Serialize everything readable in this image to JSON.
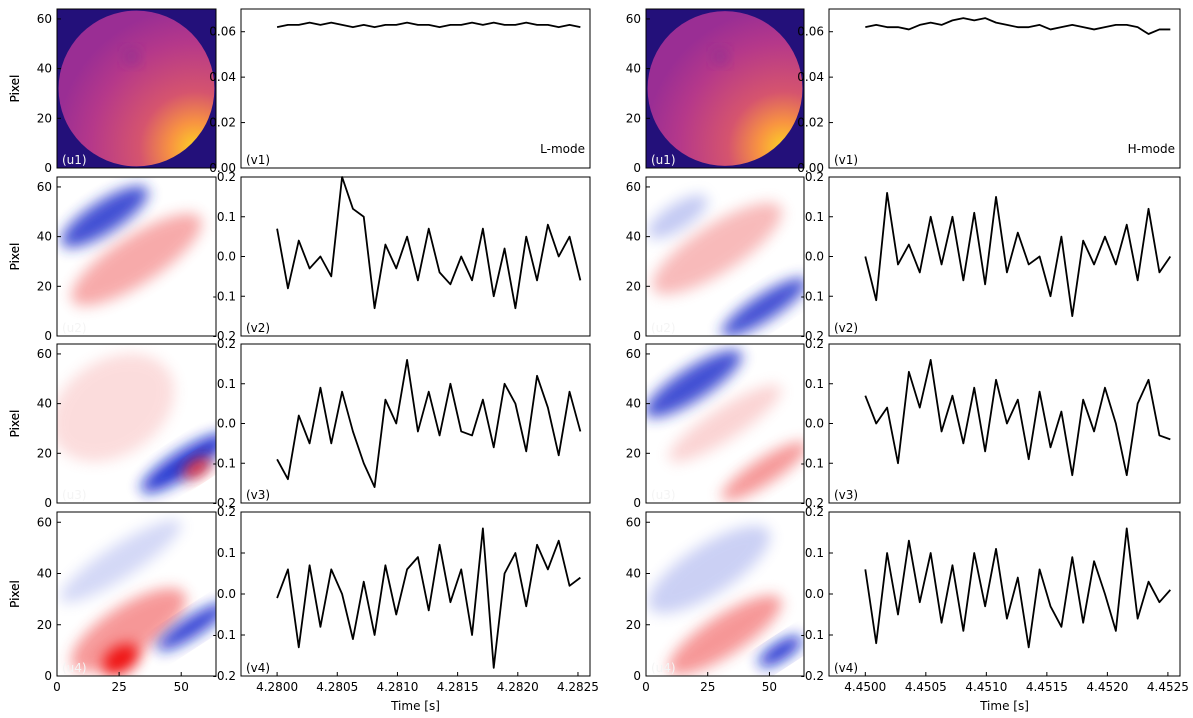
{
  "chart_data": [
    {
      "type": "heatmap",
      "label": "(u1)",
      "ylabel": "Pixel",
      "xlim": [
        0,
        64
      ],
      "ylim": [
        0,
        64
      ],
      "yticks": [
        0,
        20,
        40,
        60
      ]
    },
    {
      "type": "line",
      "label": "(v1)",
      "annotation": "L-mode",
      "color": "#000000",
      "xlim": [
        4.2797,
        4.2826
      ],
      "ylim": [
        0,
        0.07
      ],
      "yticks": [
        {
          "value": 0,
          "label": "0.00"
        },
        {
          "value": 0.02,
          "label": "0.02"
        },
        {
          "value": 0.04,
          "label": "0.04"
        },
        {
          "value": 0.06,
          "label": "0.06"
        }
      ],
      "x": [
        4.28,
        4.28009,
        4.28018,
        4.28027,
        4.28036,
        4.28045,
        4.28054,
        4.28063,
        4.28072,
        4.28081,
        4.2809,
        4.28099,
        4.28108,
        4.28117,
        4.28126,
        4.28135,
        4.28144,
        4.28153,
        4.28162,
        4.28171,
        4.2818,
        4.28189,
        4.28198,
        4.28207,
        4.28216,
        4.28225,
        4.28234,
        4.28243,
        4.28252
      ],
      "values": [
        0.062,
        0.063,
        0.063,
        0.064,
        0.063,
        0.064,
        0.063,
        0.062,
        0.063,
        0.062,
        0.063,
        0.063,
        0.064,
        0.063,
        0.063,
        0.062,
        0.063,
        0.063,
        0.064,
        0.063,
        0.064,
        0.063,
        0.063,
        0.064,
        0.063,
        0.063,
        0.062,
        0.063,
        0.062
      ]
    },
    {
      "type": "heatmap",
      "label": "(u1)",
      "ylabel": "Pixel",
      "xlim": [
        0,
        64
      ],
      "ylim": [
        0,
        64
      ],
      "yticks": [
        0,
        20,
        40,
        60
      ]
    },
    {
      "type": "line",
      "label": "(v1)",
      "annotation": "H-mode",
      "color": "#000000",
      "xlim": [
        4.4497,
        4.4526
      ],
      "ylim": [
        0,
        0.07
      ],
      "yticks": [
        {
          "value": 0,
          "label": "0.00"
        },
        {
          "value": 0.02,
          "label": "0.02"
        },
        {
          "value": 0.04,
          "label": "0.04"
        },
        {
          "value": 0.06,
          "label": "0.06"
        }
      ],
      "x": [
        4.45,
        4.45009,
        4.45018,
        4.45027,
        4.45036,
        4.45045,
        4.45054,
        4.45063,
        4.45072,
        4.45081,
        4.4509,
        4.45099,
        4.45108,
        4.45117,
        4.45126,
        4.45135,
        4.45144,
        4.45153,
        4.45162,
        4.45171,
        4.4518,
        4.45189,
        4.45198,
        4.45207,
        4.45216,
        4.45225,
        4.45234,
        4.45243,
        4.45252
      ],
      "values": [
        0.062,
        0.063,
        0.062,
        0.062,
        0.061,
        0.063,
        0.064,
        0.063,
        0.065,
        0.066,
        0.065,
        0.066,
        0.064,
        0.063,
        0.062,
        0.062,
        0.063,
        0.061,
        0.062,
        0.063,
        0.062,
        0.061,
        0.062,
        0.063,
        0.063,
        0.062,
        0.059,
        0.061,
        0.061
      ]
    },
    {
      "type": "heatmap",
      "label": "(u2)",
      "ylabel": "Pixel",
      "xlim": [
        0,
        64
      ],
      "ylim": [
        0,
        64
      ],
      "yticks": [
        0,
        20,
        40,
        60
      ]
    },
    {
      "type": "line",
      "label": "(v2)",
      "color": "#000000",
      "xlim": [
        4.2797,
        4.2826
      ],
      "ylim": [
        -0.2,
        0.2
      ],
      "yticks": [
        -0.2,
        -0.1,
        {
          "value": 0,
          "label": "0.0"
        },
        0.1,
        0.2
      ],
      "x": [
        4.28,
        4.28009,
        4.28018,
        4.28027,
        4.28036,
        4.28045,
        4.28054,
        4.28063,
        4.28072,
        4.28081,
        4.2809,
        4.28099,
        4.28108,
        4.28117,
        4.28126,
        4.28135,
        4.28144,
        4.28153,
        4.28162,
        4.28171,
        4.2818,
        4.28189,
        4.28198,
        4.28207,
        4.28216,
        4.28225,
        4.28234,
        4.28243,
        4.28252
      ],
      "values": [
        0.07,
        -0.08,
        0.04,
        -0.03,
        0.0,
        -0.05,
        0.2,
        0.12,
        0.1,
        -0.13,
        0.03,
        -0.03,
        0.05,
        -0.06,
        0.07,
        -0.04,
        -0.07,
        0.0,
        -0.06,
        0.07,
        -0.1,
        0.02,
        -0.13,
        0.05,
        -0.06,
        0.08,
        0.0,
        0.05,
        -0.06
      ]
    },
    {
      "type": "heatmap",
      "label": "(u2)",
      "ylabel": "Pixel",
      "xlim": [
        0,
        64
      ],
      "ylim": [
        0,
        64
      ],
      "yticks": [
        0,
        20,
        40,
        60
      ]
    },
    {
      "type": "line",
      "label": "(v2)",
      "color": "#000000",
      "xlim": [
        4.4497,
        4.4526
      ],
      "ylim": [
        -0.2,
        0.2
      ],
      "yticks": [
        -0.2,
        -0.1,
        {
          "value": 0,
          "label": "0.0"
        },
        0.1,
        0.2
      ],
      "x": [
        4.45,
        4.45009,
        4.45018,
        4.45027,
        4.45036,
        4.45045,
        4.45054,
        4.45063,
        4.45072,
        4.45081,
        4.4509,
        4.45099,
        4.45108,
        4.45117,
        4.45126,
        4.45135,
        4.45144,
        4.45153,
        4.45162,
        4.45171,
        4.4518,
        4.45189,
        4.45198,
        4.45207,
        4.45216,
        4.45225,
        4.45234,
        4.45243,
        4.45252
      ],
      "values": [
        0.0,
        -0.11,
        0.16,
        -0.02,
        0.03,
        -0.04,
        0.1,
        -0.02,
        0.1,
        -0.06,
        0.11,
        -0.07,
        0.15,
        -0.04,
        0.06,
        -0.02,
        0.0,
        -0.1,
        0.05,
        -0.15,
        0.04,
        -0.02,
        0.05,
        -0.02,
        0.08,
        -0.06,
        0.12,
        -0.04,
        0.0
      ]
    },
    {
      "type": "heatmap",
      "label": "(u3)",
      "ylabel": "Pixel",
      "xlim": [
        0,
        64
      ],
      "ylim": [
        0,
        64
      ],
      "yticks": [
        0,
        20,
        40,
        60
      ]
    },
    {
      "type": "line",
      "label": "(v3)",
      "color": "#000000",
      "xlim": [
        4.2797,
        4.2826
      ],
      "ylim": [
        -0.2,
        0.2
      ],
      "yticks": [
        -0.2,
        -0.1,
        {
          "value": 0,
          "label": "0.0"
        },
        0.1,
        0.2
      ],
      "x": [
        4.28,
        4.28009,
        4.28018,
        4.28027,
        4.28036,
        4.28045,
        4.28054,
        4.28063,
        4.28072,
        4.28081,
        4.2809,
        4.28099,
        4.28108,
        4.28117,
        4.28126,
        4.28135,
        4.28144,
        4.28153,
        4.28162,
        4.28171,
        4.2818,
        4.28189,
        4.28198,
        4.28207,
        4.28216,
        4.28225,
        4.28234,
        4.28243,
        4.28252
      ],
      "values": [
        -0.09,
        -0.14,
        0.02,
        -0.05,
        0.09,
        -0.05,
        0.08,
        -0.02,
        -0.1,
        -0.16,
        0.06,
        0.0,
        0.16,
        -0.02,
        0.08,
        -0.03,
        0.1,
        -0.02,
        -0.03,
        0.06,
        -0.06,
        0.1,
        0.05,
        -0.07,
        0.12,
        0.04,
        -0.08,
        0.08,
        -0.02
      ]
    },
    {
      "type": "heatmap",
      "label": "(u3)",
      "ylabel": "Pixel",
      "xlim": [
        0,
        64
      ],
      "ylim": [
        0,
        64
      ],
      "yticks": [
        0,
        20,
        40,
        60
      ]
    },
    {
      "type": "line",
      "label": "(v3)",
      "color": "#000000",
      "xlim": [
        4.4497,
        4.4526
      ],
      "ylim": [
        -0.2,
        0.2
      ],
      "yticks": [
        -0.2,
        -0.1,
        {
          "value": 0,
          "label": "0.0"
        },
        0.1,
        0.2
      ],
      "x": [
        4.45,
        4.45009,
        4.45018,
        4.45027,
        4.45036,
        4.45045,
        4.45054,
        4.45063,
        4.45072,
        4.45081,
        4.4509,
        4.45099,
        4.45108,
        4.45117,
        4.45126,
        4.45135,
        4.45144,
        4.45153,
        4.45162,
        4.45171,
        4.4518,
        4.45189,
        4.45198,
        4.45207,
        4.45216,
        4.45225,
        4.45234,
        4.45243,
        4.45252
      ],
      "values": [
        0.07,
        0.0,
        0.04,
        -0.1,
        0.13,
        0.04,
        0.16,
        -0.02,
        0.07,
        -0.05,
        0.09,
        -0.07,
        0.11,
        0.0,
        0.06,
        -0.09,
        0.08,
        -0.06,
        0.03,
        -0.13,
        0.06,
        -0.02,
        0.09,
        0.0,
        -0.13,
        0.05,
        0.11,
        -0.03,
        -0.04
      ]
    },
    {
      "type": "heatmap",
      "label": "(u4)",
      "ylabel": "Pixel",
      "xlim": [
        0,
        64
      ],
      "ylim": [
        0,
        64
      ],
      "yticks": [
        0,
        20,
        40,
        60
      ],
      "xticks": [
        0,
        25,
        50
      ]
    },
    {
      "type": "line",
      "label": "(v4)",
      "xlabel": "Time [s]",
      "color": "#000000",
      "xlim": [
        4.2797,
        4.2826
      ],
      "ylim": [
        -0.2,
        0.2
      ],
      "yticks": [
        -0.2,
        -0.1,
        {
          "value": 0,
          "label": "0.0"
        },
        0.1,
        0.2
      ],
      "xticks": [
        {
          "value": 4.28,
          "label": "4.2800"
        },
        {
          "value": 4.2805,
          "label": "4.2805"
        },
        {
          "value": 4.281,
          "label": "4.2810"
        },
        {
          "value": 4.2815,
          "label": "4.2815"
        },
        {
          "value": 4.282,
          "label": "4.2820"
        },
        {
          "value": 4.2825,
          "label": "4.2825"
        }
      ],
      "x": [
        4.28,
        4.28009,
        4.28018,
        4.28027,
        4.28036,
        4.28045,
        4.28054,
        4.28063,
        4.28072,
        4.28081,
        4.2809,
        4.28099,
        4.28108,
        4.28117,
        4.28126,
        4.28135,
        4.28144,
        4.28153,
        4.28162,
        4.28171,
        4.2818,
        4.28189,
        4.28198,
        4.28207,
        4.28216,
        4.28225,
        4.28234,
        4.28243,
        4.28252
      ],
      "values": [
        -0.01,
        0.06,
        -0.13,
        0.07,
        -0.08,
        0.06,
        0.0,
        -0.11,
        0.03,
        -0.1,
        0.07,
        -0.05,
        0.06,
        0.09,
        -0.04,
        0.12,
        -0.02,
        0.06,
        -0.1,
        0.16,
        -0.18,
        0.05,
        0.1,
        -0.03,
        0.12,
        0.06,
        0.13,
        0.02,
        0.04
      ]
    },
    {
      "type": "heatmap",
      "label": "(u4)",
      "ylabel": "Pixel",
      "xlim": [
        0,
        64
      ],
      "ylim": [
        0,
        64
      ],
      "yticks": [
        0,
        20,
        40,
        60
      ],
      "xticks": [
        0,
        25,
        50
      ]
    },
    {
      "type": "line",
      "label": "(v4)",
      "xlabel": "Time [s]",
      "color": "#000000",
      "xlim": [
        4.4497,
        4.4526
      ],
      "ylim": [
        -0.2,
        0.2
      ],
      "yticks": [
        -0.2,
        -0.1,
        {
          "value": 0,
          "label": "0.0"
        },
        0.1,
        0.2
      ],
      "xticks": [
        {
          "value": 4.45,
          "label": "4.4500"
        },
        {
          "value": 4.4505,
          "label": "4.4505"
        },
        {
          "value": 4.451,
          "label": "4.4510"
        },
        {
          "value": 4.4515,
          "label": "4.4515"
        },
        {
          "value": 4.452,
          "label": "4.4520"
        },
        {
          "value": 4.4525,
          "label": "4.4525"
        }
      ],
      "x": [
        4.45,
        4.45009,
        4.45018,
        4.45027,
        4.45036,
        4.45045,
        4.45054,
        4.45063,
        4.45072,
        4.45081,
        4.4509,
        4.45099,
        4.45108,
        4.45117,
        4.45126,
        4.45135,
        4.45144,
        4.45153,
        4.45162,
        4.45171,
        4.4518,
        4.45189,
        4.45198,
        4.45207,
        4.45216,
        4.45225,
        4.45234,
        4.45243,
        4.45252
      ],
      "values": [
        0.06,
        -0.12,
        0.1,
        -0.05,
        0.13,
        -0.02,
        0.1,
        -0.07,
        0.07,
        -0.09,
        0.1,
        -0.03,
        0.11,
        -0.06,
        0.04,
        -0.13,
        0.06,
        -0.03,
        -0.08,
        0.09,
        -0.07,
        0.08,
        0.0,
        -0.09,
        0.16,
        -0.06,
        0.03,
        -0.02,
        0.01
      ]
    }
  ]
}
